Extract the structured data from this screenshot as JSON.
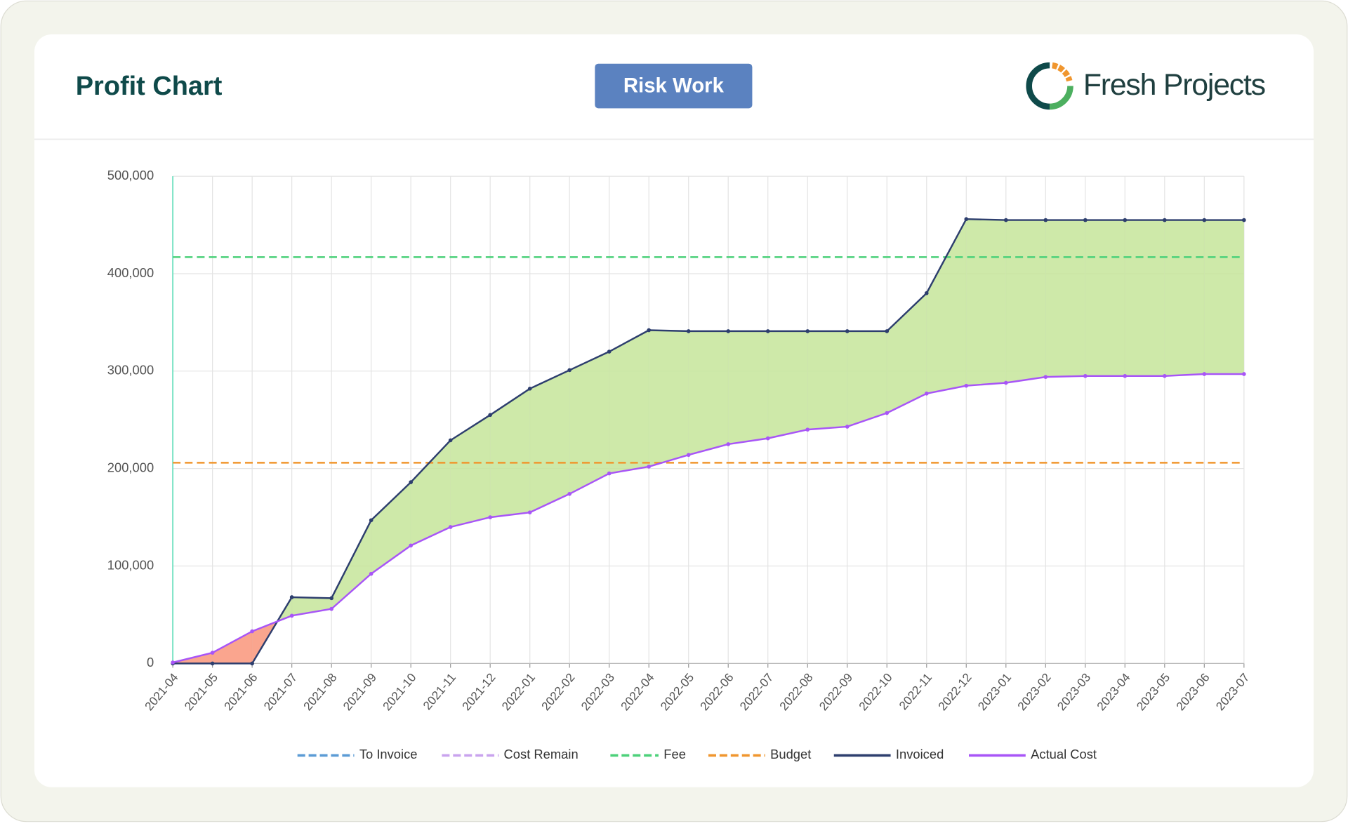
{
  "header": {
    "title": "Profit Chart",
    "button": "Risk Work",
    "logo": "Fresh Projects"
  },
  "chart_data": {
    "type": "line",
    "categories": [
      "2021-04",
      "2021-05",
      "2021-06",
      "2021-07",
      "2021-08",
      "2021-09",
      "2021-10",
      "2021-11",
      "2021-12",
      "2022-01",
      "2022-02",
      "2022-03",
      "2022-04",
      "2022-05",
      "2022-06",
      "2022-07",
      "2022-08",
      "2022-09",
      "2022-10",
      "2022-11",
      "2022-12",
      "2023-01",
      "2023-02",
      "2023-03",
      "2023-04",
      "2023-05",
      "2023-06",
      "2023-07"
    ],
    "series": [
      {
        "name": "To Invoice",
        "color": "#5b9bd5",
        "dashed": true
      },
      {
        "name": "Cost Remain",
        "color": "#c9a3ee",
        "dashed": true
      },
      {
        "name": "Fee",
        "color": "#4cd17a",
        "dashed": true,
        "value": 417000
      },
      {
        "name": "Budget",
        "color": "#f0962e",
        "dashed": true,
        "value": 206000
      },
      {
        "name": "Invoiced",
        "color": "#2d3e6e",
        "values": [
          0,
          0,
          0,
          68000,
          67000,
          147000,
          186000,
          229000,
          255000,
          282000,
          301000,
          320000,
          342000,
          341000,
          341000,
          341000,
          341000,
          341000,
          341000,
          380000,
          456000,
          455000,
          455000,
          455000,
          455000,
          455000,
          455000,
          455000
        ]
      },
      {
        "name": "Actual Cost",
        "color": "#a855f7",
        "values": [
          1000,
          11000,
          33000,
          49000,
          56000,
          92000,
          121000,
          140000,
          150000,
          155000,
          174000,
          195000,
          202000,
          214000,
          225000,
          231000,
          240000,
          243000,
          257000,
          277000,
          285000,
          288000,
          294000,
          295000,
          295000,
          295000,
          297000,
          297000
        ]
      }
    ],
    "ylim": [
      0,
      500000
    ],
    "yticks": [
      0,
      {
        "value": 100000,
        "label": "100,000"
      },
      {
        "value": 200000,
        "label": "200,000"
      },
      {
        "value": 300000,
        "label": "300,000"
      },
      {
        "value": 400000,
        "label": "400,000"
      },
      {
        "value": 500000,
        "label": "500,000"
      }
    ],
    "grid": true,
    "profit_color": "#c5e59a",
    "loss_color": "#f9957a"
  }
}
